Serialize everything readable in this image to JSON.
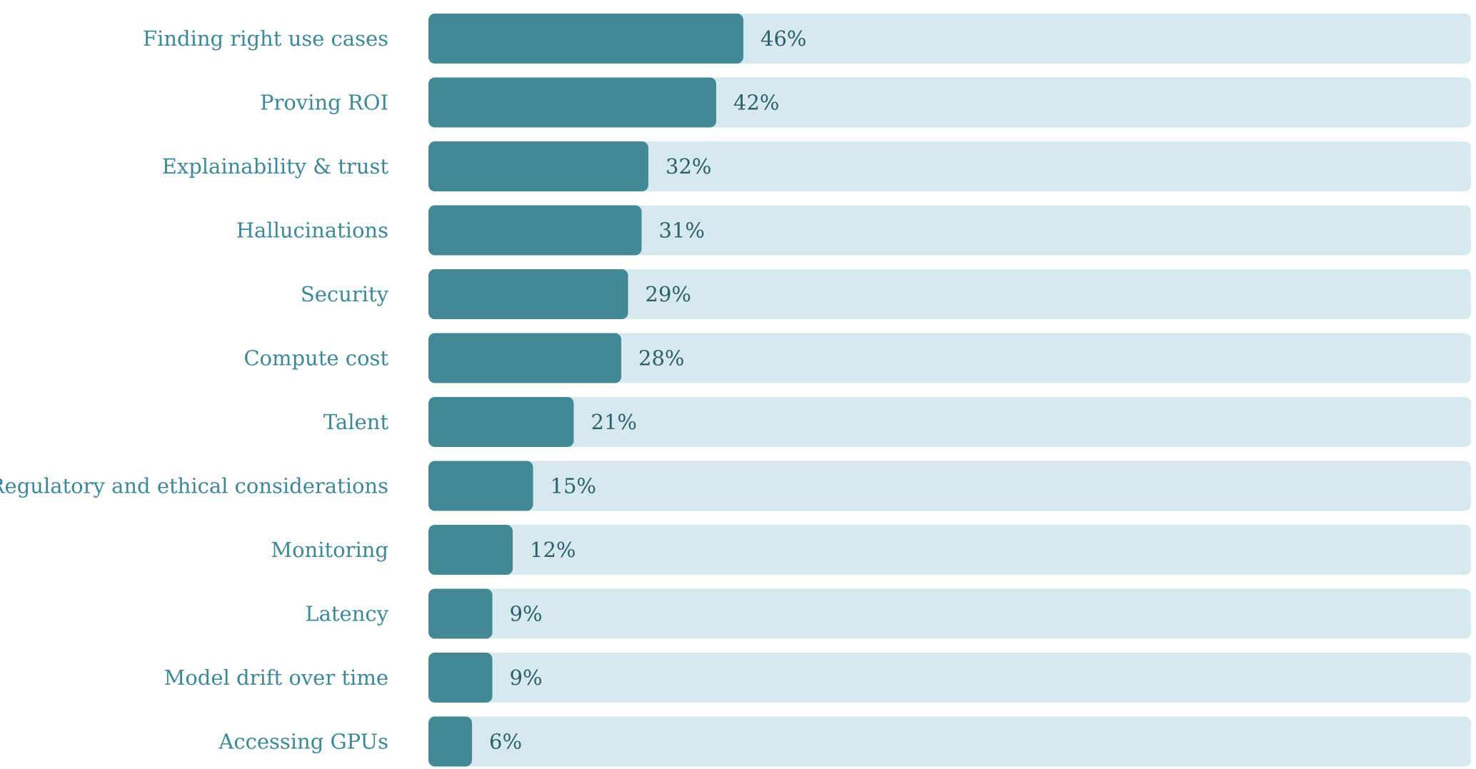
{
  "chart_data": {
    "type": "bar",
    "orientation": "horizontal",
    "categories": [
      "Finding right use cases",
      "Proving ROI",
      "Explainability & trust",
      "Hallucinations",
      "Security",
      "Compute cost",
      "Talent",
      "Regulatory and ethical considerations",
      "Monitoring",
      "Latency",
      "Model drift over time",
      "Accessing GPUs"
    ],
    "values": [
      46,
      42,
      32,
      31,
      29,
      28,
      21,
      15,
      12,
      9,
      9,
      6
    ],
    "value_labels": [
      "46%",
      "42%",
      "32%",
      "31%",
      "29%",
      "28%",
      "21%",
      "15%",
      "12%",
      "9%",
      "9%",
      "6%"
    ],
    "unit": "%",
    "xlim": [
      0,
      100
    ],
    "title": "",
    "xlabel": "",
    "ylabel": "",
    "grid": false,
    "legend": "none"
  },
  "colors": {
    "bar": "#438895",
    "track": "#d6e9ee",
    "label": "#3d8896",
    "value_text": "#2c5f6b"
  }
}
